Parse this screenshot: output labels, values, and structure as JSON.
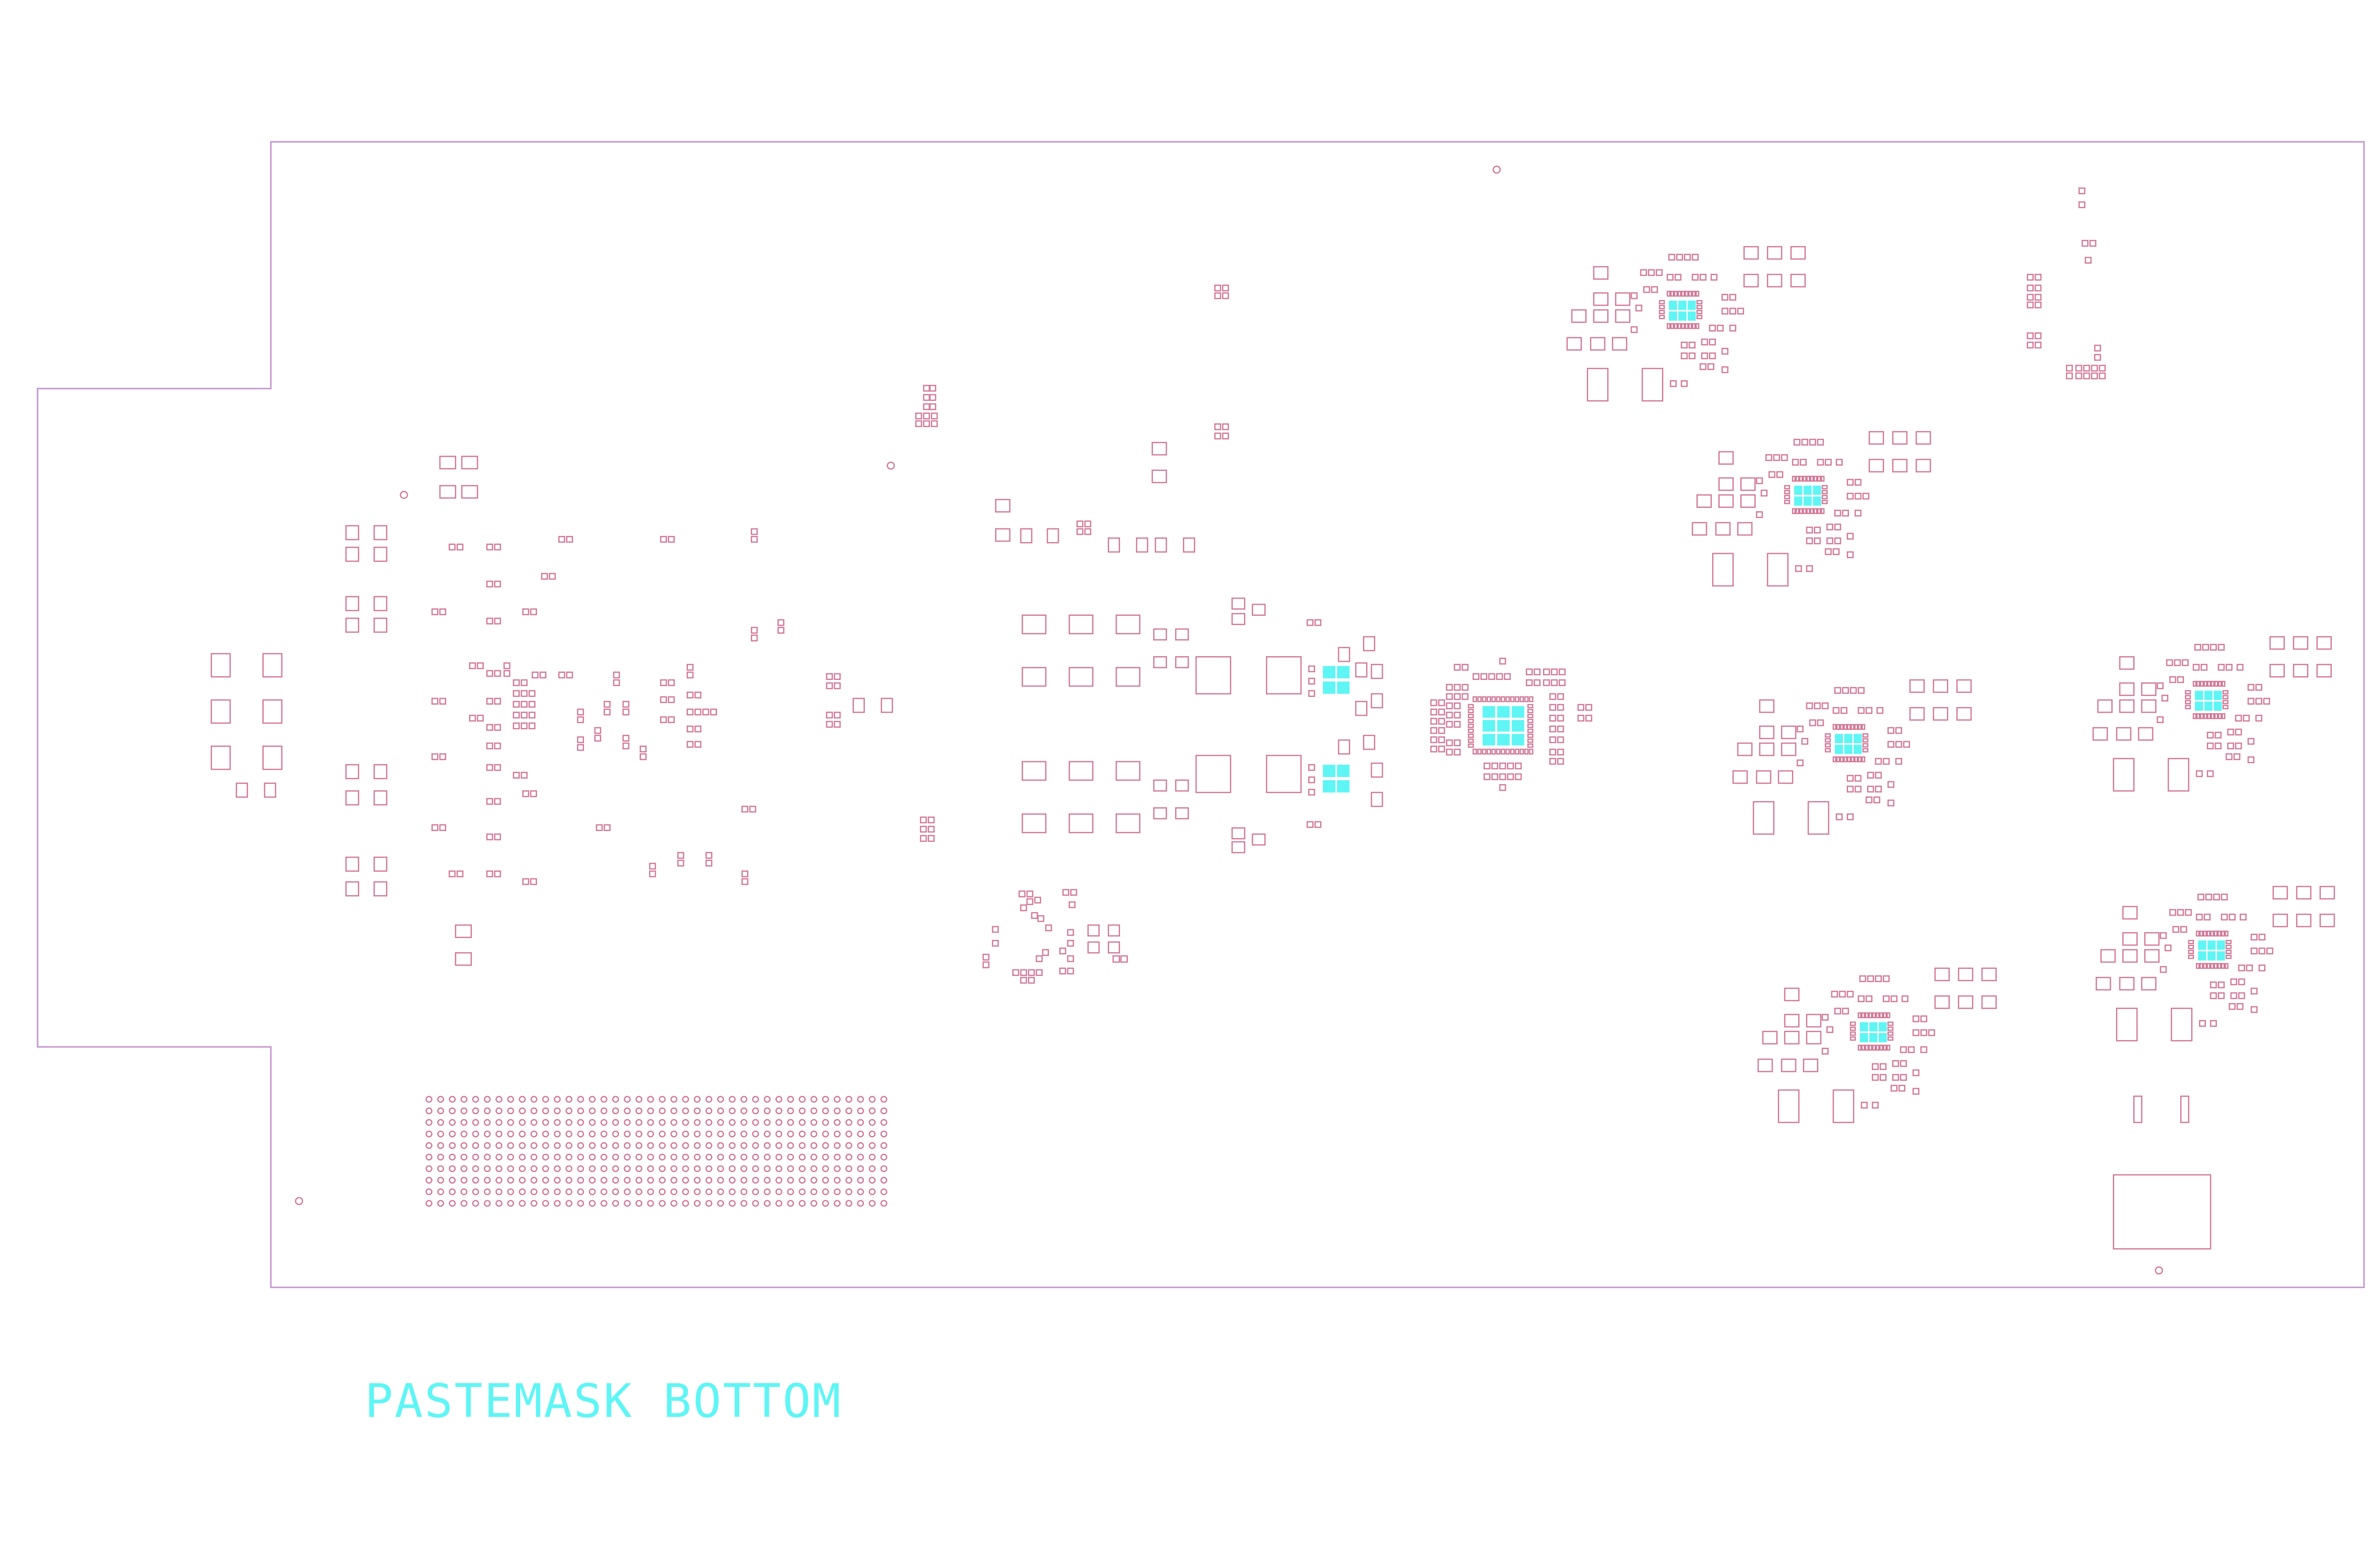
{
  "layer": {
    "label": "PASTEMASK BOTTOM"
  },
  "colors": {
    "outline": "#c79ad4",
    "pad": "#d27896",
    "thermal_pad": "#5ff5f5",
    "label": "#5ff5f5",
    "background": "#ffffff"
  }
}
